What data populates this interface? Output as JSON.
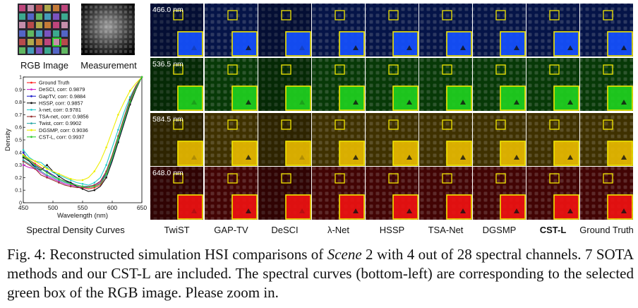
{
  "figure": {
    "rgb_label": "RGB Image",
    "measurement_label": "Measurement",
    "spectral_title": "Spectral Density Curves",
    "wavelengths": [
      "466.0 nm",
      "536.5 nm",
      "584.5 nm",
      "648.0 nm"
    ],
    "row_colors": [
      "#1550ff",
      "#1fd01f",
      "#e6b800",
      "#ee1111"
    ],
    "methods": [
      {
        "label": "TwiST",
        "bold": false
      },
      {
        "label": "GAP-TV",
        "bold": false
      },
      {
        "label": "DeSCI",
        "bold": false
      },
      {
        "label": "λ-Net",
        "bold": false
      },
      {
        "label": "HSSP",
        "bold": false
      },
      {
        "label": "TSA-Net",
        "bold": false
      },
      {
        "label": "DGSMP",
        "bold": false
      },
      {
        "label": "CST-L",
        "bold": true
      },
      {
        "label": "Ground Truth",
        "bold": false
      }
    ],
    "highlight_color": "#f2e600"
  },
  "chart_data": {
    "type": "line",
    "title": "Spectral Density Curves",
    "xlabel": "Wavelength (nm)",
    "ylabel": "Density",
    "xlim": [
      450,
      650
    ],
    "ylim": [
      0,
      1
    ],
    "xticks": [
      "450",
      "500",
      "550",
      "600",
      "650"
    ],
    "yticks": [
      "0",
      "0.1",
      "0.2",
      "0.3",
      "0.4",
      "0.5",
      "0.6",
      "0.7",
      "0.8",
      "0.9",
      "1"
    ],
    "x": [
      450,
      460,
      470,
      480,
      490,
      500,
      510,
      520,
      530,
      540,
      550,
      560,
      570,
      580,
      590,
      600,
      610,
      620,
      630,
      640,
      650
    ],
    "series": [
      {
        "name": "Ground Truth",
        "legend": "Ground Truth",
        "color": "#ff2020",
        "marker": "circle",
        "values": [
          0.38,
          0.34,
          0.31,
          0.28,
          0.24,
          0.22,
          0.19,
          0.17,
          0.15,
          0.13,
          0.12,
          0.11,
          0.12,
          0.14,
          0.22,
          0.35,
          0.5,
          0.65,
          0.8,
          0.91,
          1.0
        ]
      },
      {
        "name": "DeSCI",
        "legend": "DeSCI, corr: 0.9879",
        "color": "#cc22cc",
        "marker": "x",
        "values": [
          0.3,
          0.28,
          0.27,
          0.24,
          0.21,
          0.19,
          0.17,
          0.15,
          0.14,
          0.13,
          0.12,
          0.12,
          0.13,
          0.16,
          0.24,
          0.36,
          0.51,
          0.66,
          0.81,
          0.92,
          1.0
        ]
      },
      {
        "name": "GapTV",
        "legend": "GapTV, corr: 0.9884",
        "color": "#2222cc",
        "marker": "circle",
        "values": [
          0.4,
          0.33,
          0.29,
          0.27,
          0.25,
          0.22,
          0.19,
          0.17,
          0.16,
          0.14,
          0.13,
          0.13,
          0.14,
          0.17,
          0.23,
          0.34,
          0.49,
          0.64,
          0.79,
          0.91,
          1.0
        ]
      },
      {
        "name": "HSSP",
        "legend": "HSSP, corr: 0.9857",
        "color": "#111111",
        "marker": "circle",
        "values": [
          0.36,
          0.33,
          0.28,
          0.26,
          0.3,
          0.25,
          0.21,
          0.18,
          0.16,
          0.13,
          0.11,
          0.09,
          0.1,
          0.13,
          0.2,
          0.33,
          0.48,
          0.63,
          0.78,
          0.9,
          1.0
        ]
      },
      {
        "name": "λ-net",
        "legend": "λ-net, corr: 0.9781",
        "color": "#22cccc",
        "marker": "diamond",
        "values": [
          0.42,
          0.36,
          0.33,
          0.32,
          0.28,
          0.24,
          0.22,
          0.2,
          0.18,
          0.16,
          0.15,
          0.14,
          0.16,
          0.2,
          0.3,
          0.44,
          0.58,
          0.72,
          0.84,
          0.93,
          1.0
        ]
      },
      {
        "name": "TSA-net",
        "legend": "TSA-net, corr: 0.9856",
        "color": "#993333",
        "marker": "circle",
        "values": [
          0.33,
          0.3,
          0.27,
          0.22,
          0.2,
          0.18,
          0.16,
          0.14,
          0.13,
          0.12,
          0.12,
          0.13,
          0.14,
          0.17,
          0.25,
          0.38,
          0.53,
          0.68,
          0.82,
          0.93,
          1.0
        ]
      },
      {
        "name": "Twist",
        "legend": "Twist, corr: 0.9902",
        "color": "#33aaaa",
        "marker": "circle",
        "values": [
          0.34,
          0.31,
          0.28,
          0.25,
          0.22,
          0.2,
          0.18,
          0.16,
          0.15,
          0.14,
          0.13,
          0.12,
          0.13,
          0.15,
          0.22,
          0.35,
          0.5,
          0.65,
          0.8,
          0.91,
          1.0
        ]
      },
      {
        "name": "DGSMP",
        "legend": "DGSMP, corr: 0.9036",
        "color": "#eeee00",
        "marker": "circle",
        "values": [
          0.38,
          0.35,
          0.33,
          0.3,
          0.27,
          0.25,
          0.23,
          0.21,
          0.19,
          0.18,
          0.18,
          0.2,
          0.25,
          0.33,
          0.44,
          0.57,
          0.7,
          0.8,
          0.89,
          0.95,
          1.0
        ]
      },
      {
        "name": "CST-L",
        "legend": "CST-L, corr: 0.9937",
        "color": "#33cc33",
        "marker": "circle",
        "values": [
          0.37,
          0.34,
          0.3,
          0.27,
          0.24,
          0.21,
          0.19,
          0.17,
          0.15,
          0.14,
          0.13,
          0.12,
          0.13,
          0.15,
          0.23,
          0.36,
          0.51,
          0.66,
          0.8,
          0.91,
          1.0
        ]
      }
    ]
  },
  "caption": {
    "part1": "Fig. 4: Reconstructed simulation HSI comparisons of ",
    "scene": "Scene",
    "part2": " 2 with 4 out of 28 spectral channels. 7 SOTA methods and our CST-L are included. The spectral curves (bottom-left) are corresponding to the selected green box of the RGB image. Please zoom in."
  }
}
